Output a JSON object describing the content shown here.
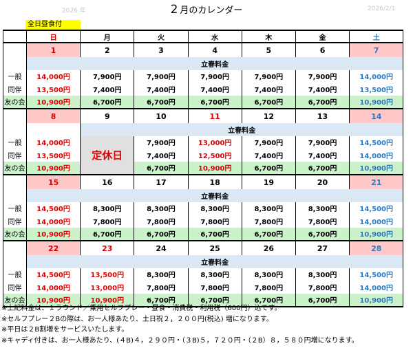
{
  "header": {
    "year": "2026 年",
    "date": "2026/2/1",
    "month_num": "2",
    "title_text": "月のカレンダー",
    "lunch_tag": "全日昼食付"
  },
  "weekdays": [
    "日",
    "月",
    "火",
    "水",
    "木",
    "金",
    "土"
  ],
  "special_band": "立春料金",
  "row_labels": [
    "一般",
    "同伴",
    "友の会"
  ],
  "closed_label": "定休日",
  "weeks": [
    {
      "days": [
        "1",
        "2",
        "3",
        "4",
        "5",
        "6",
        "7"
      ],
      "general": [
        "14,000円",
        "7,900円",
        "7,900円",
        "7,900円",
        "7,900円",
        "7,900円",
        "14,000円"
      ],
      "companion": [
        "13,500円",
        "7,400円",
        "7,400円",
        "7,400円",
        "7,400円",
        "7,400円",
        "13,500円"
      ],
      "member": [
        "10,900円",
        "6,700円",
        "6,700円",
        "6,700円",
        "6,700円",
        "6,700円",
        "10,900円"
      ]
    },
    {
      "days": [
        "8",
        "9",
        "10",
        "11",
        "12",
        "13",
        "14"
      ],
      "general": [
        "14,000円",
        "",
        "7,900円",
        "13,000円",
        "7,900円",
        "7,900円",
        "14,500円"
      ],
      "companion": [
        "13,500円",
        "",
        "7,400円",
        "12,500円",
        "7,400円",
        "7,400円",
        "14,000円"
      ],
      "member": [
        "10,900円",
        "",
        "6,700円",
        "10,900円",
        "6,700円",
        "6,700円",
        "10,900円"
      ]
    },
    {
      "days": [
        "15",
        "16",
        "17",
        "18",
        "19",
        "20",
        "21"
      ],
      "general": [
        "14,500円",
        "8,300円",
        "8,300円",
        "8,300円",
        "8,300円",
        "8,300円",
        "14,500円"
      ],
      "companion": [
        "14,000円",
        "7,800円",
        "7,800円",
        "7,800円",
        "7,800円",
        "7,800円",
        "14,000円"
      ],
      "member": [
        "10,900円",
        "6,700円",
        "6,700円",
        "6,700円",
        "6,700円",
        "6,700円",
        "10,900円"
      ]
    },
    {
      "days": [
        "22",
        "23",
        "24",
        "25",
        "26",
        "27",
        "28"
      ],
      "general": [
        "14,500円",
        "13,500円",
        "8,300円",
        "8,300円",
        "8,300円",
        "8,300円",
        "14,500円"
      ],
      "companion": [
        "14,000円",
        "13,000円",
        "7,800円",
        "7,800円",
        "7,800円",
        "7,800円",
        "14,000円"
      ],
      "member": [
        "10,900円",
        "10,900円",
        "6,700円",
        "6,700円",
        "6,700円",
        "6,700円",
        "10,900円"
      ]
    }
  ],
  "notes": [
    "※上記料金は、１ラウンド／乗用セルフプレー・昼食・消費税・利用税（600円）込です。",
    "※セルフプレー２Bの際は、お一人様あたり、土日祝２，２００円(税込) 増になります。",
    "※平日は２B割増をサービスいたします。",
    "※キャディ付きは、お一人様あたり、(４B)４，２９０円・（３B)５，７２０円・（２B）８，５８０円増になります。"
  ]
}
